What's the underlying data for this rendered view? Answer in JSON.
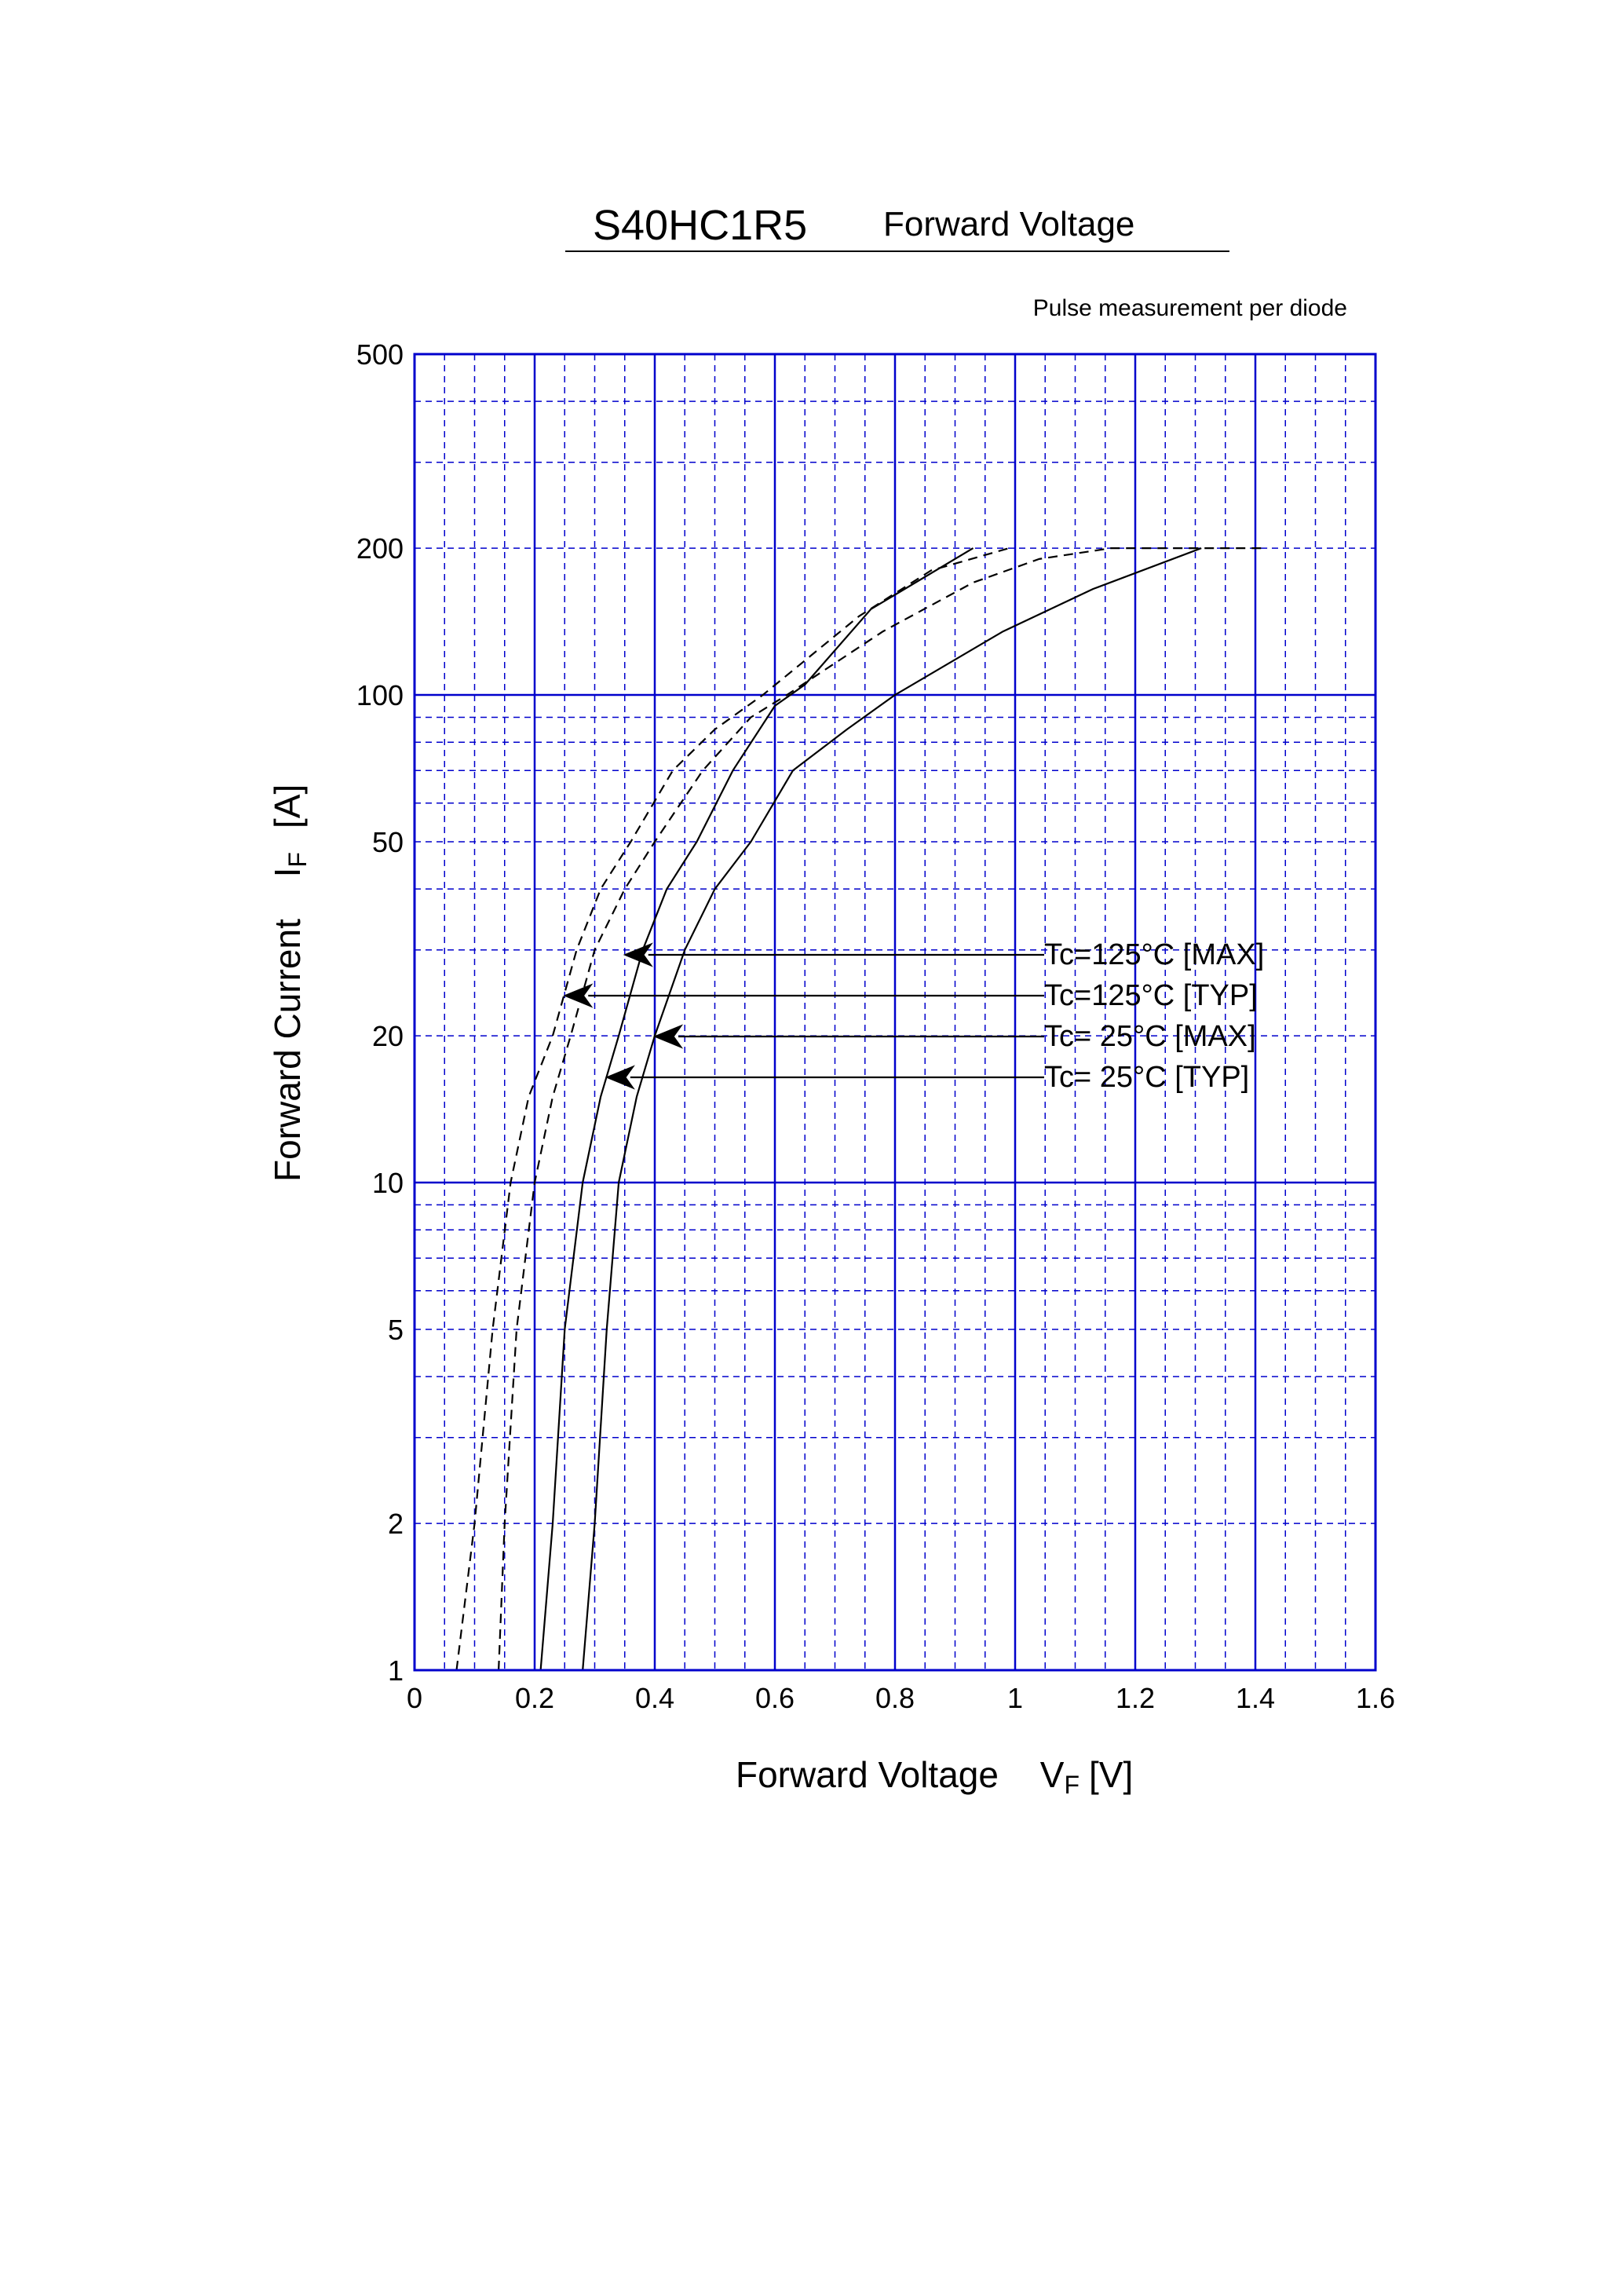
{
  "title": "S40HC1R5",
  "subtitle": "Forward Voltage",
  "note": "Pulse measurement per diode",
  "chart_data": {
    "type": "line",
    "xlabel": {
      "main": "Forward Voltage",
      "symbol": "V",
      "subscript": "F",
      "unit": "[V]"
    },
    "ylabel": {
      "main": "Forward Current",
      "symbol": "I",
      "subscript": "F",
      "unit": "[A]"
    },
    "xlim": [
      0,
      1.6
    ],
    "ylim": [
      1,
      500
    ],
    "yscale": "log",
    "x_ticks": [
      "0",
      "0.2",
      "0.4",
      "0.6",
      "0.8",
      "1",
      "1.2",
      "1.4",
      "1.6"
    ],
    "x_tick_values": [
      0,
      0.2,
      0.4,
      0.6,
      0.8,
      1.0,
      1.2,
      1.4,
      1.6
    ],
    "y_ticks": [
      "1",
      "2",
      "5",
      "10",
      "20",
      "50",
      "100",
      "200",
      "500"
    ],
    "y_tick_values": [
      1,
      2,
      5,
      10,
      20,
      50,
      100,
      200,
      500
    ],
    "grid": true,
    "grid_color": "#0000cc",
    "series": [
      {
        "name": "Tc=125°C [MAX]",
        "style": "dashed",
        "points": [
          [
            0.14,
            1
          ],
          [
            0.15,
            2
          ],
          [
            0.17,
            5
          ],
          [
            0.2,
            10
          ],
          [
            0.23,
            15
          ],
          [
            0.26,
            20
          ],
          [
            0.3,
            30
          ],
          [
            0.35,
            40
          ],
          [
            0.4,
            50
          ],
          [
            0.48,
            70
          ],
          [
            0.56,
            90
          ],
          [
            0.62,
            100
          ],
          [
            0.78,
            135
          ],
          [
            0.93,
            170
          ],
          [
            1.04,
            190
          ],
          [
            1.16,
            200
          ]
        ],
        "points_upper": [
          [
            1.16,
            200
          ],
          [
            1.42,
            200
          ]
        ]
      },
      {
        "name": "Tc=125°C [TYP]",
        "style": "dashed",
        "points": [
          [
            0.07,
            1
          ],
          [
            0.1,
            2
          ],
          [
            0.13,
            5
          ],
          [
            0.16,
            10
          ],
          [
            0.19,
            15
          ],
          [
            0.23,
            20
          ],
          [
            0.27,
            30
          ],
          [
            0.31,
            40
          ],
          [
            0.36,
            50
          ],
          [
            0.43,
            70
          ],
          [
            0.5,
            85
          ],
          [
            0.58,
            100
          ],
          [
            0.74,
            145
          ],
          [
            0.86,
            180
          ],
          [
            0.99,
            200
          ]
        ]
      },
      {
        "name": "Tc=  25°C [MAX]",
        "style": "solid",
        "points": [
          [
            0.28,
            1
          ],
          [
            0.3,
            2
          ],
          [
            0.32,
            5
          ],
          [
            0.34,
            10
          ],
          [
            0.37,
            15
          ],
          [
            0.4,
            20
          ],
          [
            0.45,
            30
          ],
          [
            0.5,
            40
          ],
          [
            0.56,
            50
          ],
          [
            0.63,
            70
          ],
          [
            0.72,
            85
          ],
          [
            0.8,
            100
          ],
          [
            0.98,
            135
          ],
          [
            1.13,
            165
          ],
          [
            1.31,
            200
          ]
        ]
      },
      {
        "name": "Tc=  25°C [TYP]",
        "style": "solid",
        "points": [
          [
            0.21,
            1
          ],
          [
            0.23,
            2
          ],
          [
            0.25,
            5
          ],
          [
            0.28,
            10
          ],
          [
            0.31,
            15
          ],
          [
            0.34,
            20
          ],
          [
            0.38,
            30
          ],
          [
            0.42,
            40
          ],
          [
            0.47,
            50
          ],
          [
            0.53,
            70
          ],
          [
            0.6,
            95
          ],
          [
            0.65,
            105
          ],
          [
            0.76,
            150
          ],
          [
            0.93,
            200
          ]
        ]
      }
    ],
    "annotations": [
      {
        "text": "Tc=125°C [MAX]",
        "arrow_to": [
          0.35,
          28
        ]
      },
      {
        "text": "Tc=125°C [TYP]",
        "arrow_to": [
          0.25,
          23
        ]
      },
      {
        "text": "Tc=  25°C [MAX]",
        "arrow_to": [
          0.4,
          19
        ]
      },
      {
        "text": "Tc=  25°C [TYP]",
        "arrow_to": [
          0.32,
          16
        ]
      }
    ]
  }
}
